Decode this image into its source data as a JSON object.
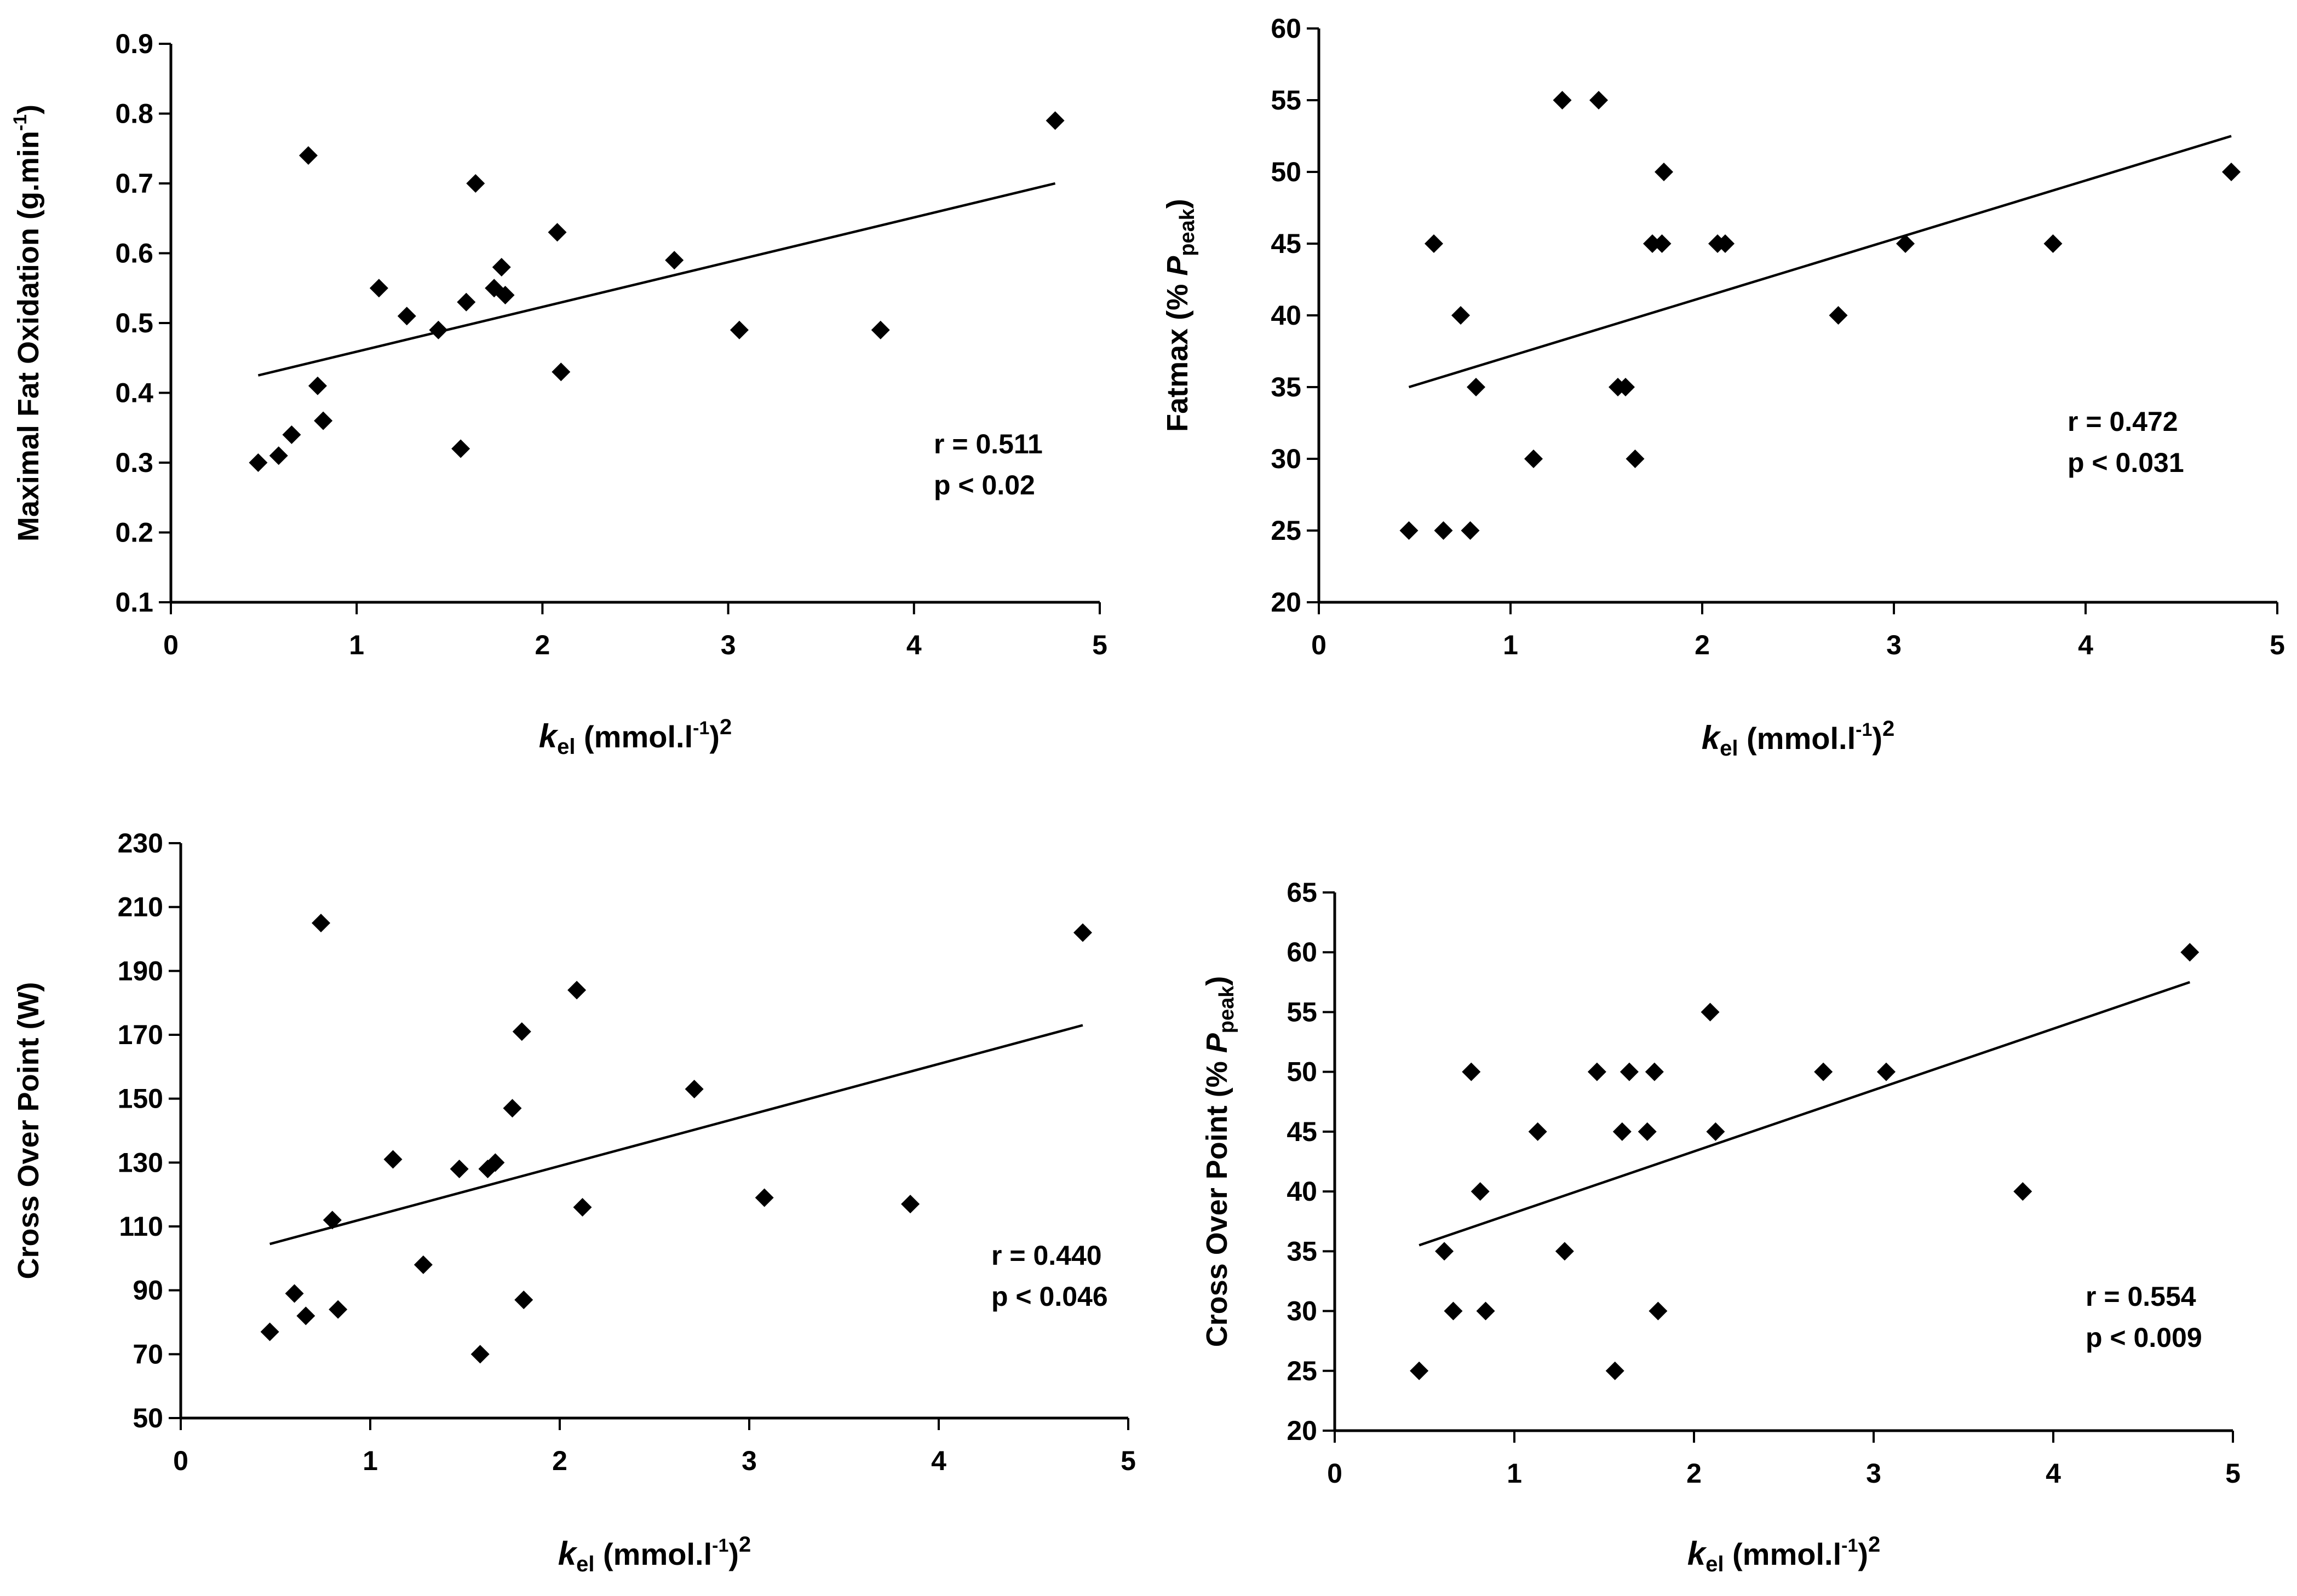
{
  "chart_data": [
    {
      "type": "scatter",
      "panel": "top-left",
      "y_label": "Maximal Fat Oxidation (g.min",
      "y_label_sup": "-1",
      "y_label_close": ")",
      "x_label": {
        "k": "k",
        "sub": "el",
        "unit": " (mmol.l",
        "sup1": "-1",
        "close": ")",
        "sup2": "2"
      },
      "xlim": [
        0,
        5
      ],
      "ylim": [
        0.1,
        0.9
      ],
      "x_ticks": [
        "0",
        "1",
        "2",
        "3",
        "4",
        "5"
      ],
      "y_ticks": [
        "0.1",
        "0.2",
        "0.3",
        "0.4",
        "0.5",
        "0.6",
        "0.7",
        "0.8",
        "0.9"
      ],
      "annotation": [
        "r = 0.511",
        "p < 0.02"
      ],
      "trendline": [
        [
          0.47,
          0.425
        ],
        [
          4.76,
          0.7
        ]
      ],
      "points": [
        [
          0.47,
          0.3
        ],
        [
          0.58,
          0.31
        ],
        [
          0.65,
          0.34
        ],
        [
          0.74,
          0.74
        ],
        [
          0.79,
          0.41
        ],
        [
          0.82,
          0.36
        ],
        [
          1.12,
          0.55
        ],
        [
          1.27,
          0.51
        ],
        [
          1.44,
          0.49
        ],
        [
          1.56,
          0.32
        ],
        [
          1.59,
          0.53
        ],
        [
          1.64,
          0.7
        ],
        [
          1.74,
          0.55
        ],
        [
          1.78,
          0.58
        ],
        [
          1.8,
          0.54
        ],
        [
          2.08,
          0.63
        ],
        [
          2.1,
          0.43
        ],
        [
          2.71,
          0.59
        ],
        [
          3.06,
          0.49
        ],
        [
          3.82,
          0.49
        ],
        [
          4.76,
          0.79
        ]
      ]
    },
    {
      "type": "scatter",
      "panel": "top-right",
      "y_label": "Fatmax (% ",
      "y_label_p": "P",
      "y_label_sub": "peak",
      "y_label_close": ")",
      "x_label": {
        "k": "k",
        "sub": "el",
        "unit": "  (mmol.l",
        "sup1": "-1",
        "close": ")",
        "sup2": "2"
      },
      "xlim": [
        0,
        5
      ],
      "ylim": [
        20,
        60
      ],
      "x_ticks": [
        "0",
        "1",
        "2",
        "3",
        "4",
        "5"
      ],
      "y_ticks": [
        "20",
        "25",
        "30",
        "35",
        "40",
        "45",
        "50",
        "55",
        "60"
      ],
      "annotation": [
        "r = 0.472",
        "p < 0.031"
      ],
      "trendline": [
        [
          0.47,
          35.0
        ],
        [
          4.76,
          52.5
        ]
      ],
      "points": [
        [
          0.47,
          25
        ],
        [
          0.6,
          45
        ],
        [
          0.65,
          25
        ],
        [
          0.74,
          40
        ],
        [
          0.79,
          25
        ],
        [
          0.82,
          35
        ],
        [
          1.12,
          30
        ],
        [
          1.27,
          55
        ],
        [
          1.46,
          55
        ],
        [
          1.56,
          35
        ],
        [
          1.6,
          35
        ],
        [
          1.65,
          30
        ],
        [
          1.74,
          45
        ],
        [
          1.79,
          45
        ],
        [
          1.8,
          50
        ],
        [
          2.08,
          45
        ],
        [
          2.12,
          45
        ],
        [
          2.71,
          40
        ],
        [
          3.06,
          45
        ],
        [
          3.83,
          45
        ],
        [
          4.76,
          50
        ]
      ]
    },
    {
      "type": "scatter",
      "panel": "bottom-left",
      "y_label": "Cross Over Point (W)",
      "x_label": {
        "k": "k",
        "sub": "el",
        "unit": " (mmol.l",
        "sup1": "-1",
        "close": ")",
        "sup2": "2"
      },
      "xlim": [
        0,
        5
      ],
      "ylim": [
        50,
        230
      ],
      "x_ticks": [
        "0",
        "1",
        "2",
        "3",
        "4",
        "5"
      ],
      "y_ticks": [
        "50",
        "70",
        "90",
        "110",
        "130",
        "150",
        "170",
        "190",
        "210",
        "230"
      ],
      "annotation": [
        "r = 0.440",
        "p < 0.046"
      ],
      "trendline": [
        [
          0.47,
          104.5
        ],
        [
          4.76,
          173.0
        ]
      ],
      "points": [
        [
          0.47,
          77
        ],
        [
          0.6,
          89
        ],
        [
          0.66,
          82
        ],
        [
          0.74,
          205
        ],
        [
          0.8,
          112
        ],
        [
          0.83,
          84
        ],
        [
          1.12,
          131
        ],
        [
          1.28,
          98
        ],
        [
          1.47,
          128
        ],
        [
          1.58,
          70
        ],
        [
          1.62,
          128
        ],
        [
          1.66,
          130
        ],
        [
          1.75,
          147
        ],
        [
          1.8,
          171
        ],
        [
          1.81,
          87
        ],
        [
          2.09,
          184
        ],
        [
          2.12,
          116
        ],
        [
          2.71,
          153
        ],
        [
          3.08,
          119
        ],
        [
          3.85,
          117
        ],
        [
          4.76,
          202
        ]
      ]
    },
    {
      "type": "scatter",
      "panel": "bottom-right",
      "y_label": "Cross Over Point (% ",
      "y_label_p": "P",
      "y_label_sub": "peak",
      "y_label_close": ")",
      "x_label": {
        "k": "k",
        "sub": "el",
        "unit": " (mmol.l",
        "sup1": "-1",
        "close": ")",
        "sup2": "2"
      },
      "xlim": [
        0,
        5
      ],
      "ylim": [
        20,
        65
      ],
      "x_ticks": [
        "0",
        "1",
        "2",
        "3",
        "4",
        "5"
      ],
      "y_ticks": [
        "20",
        "25",
        "30",
        "35",
        "40",
        "45",
        "50",
        "55",
        "60",
        "65"
      ],
      "annotation": [
        "r = 0.554",
        "p < 0.009"
      ],
      "trendline": [
        [
          0.47,
          35.5
        ],
        [
          4.76,
          57.5
        ]
      ],
      "points": [
        [
          0.47,
          25
        ],
        [
          0.61,
          35
        ],
        [
          0.66,
          30
        ],
        [
          0.76,
          50
        ],
        [
          0.81,
          40
        ],
        [
          0.84,
          30
        ],
        [
          1.13,
          45
        ],
        [
          1.28,
          35
        ],
        [
          1.46,
          50
        ],
        [
          1.56,
          25
        ],
        [
          1.6,
          45
        ],
        [
          1.64,
          50
        ],
        [
          1.74,
          45
        ],
        [
          1.78,
          50
        ],
        [
          1.8,
          30
        ],
        [
          2.09,
          55
        ],
        [
          2.12,
          45
        ],
        [
          2.72,
          50
        ],
        [
          3.07,
          50
        ],
        [
          3.83,
          40
        ],
        [
          4.76,
          60
        ]
      ]
    }
  ]
}
